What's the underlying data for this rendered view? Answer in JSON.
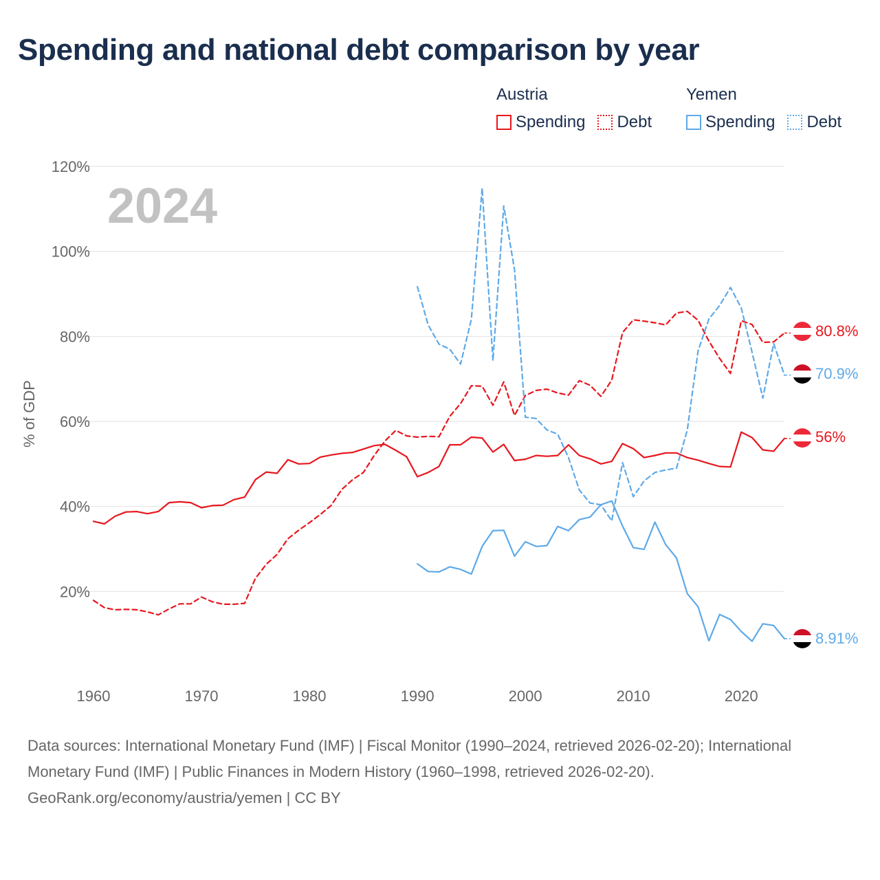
{
  "title": "Spending and national debt comparison by year",
  "legend": {
    "groups": [
      {
        "name": "Austria",
        "color": "#e8161d",
        "items": [
          {
            "label": "Spending",
            "style": "solid"
          },
          {
            "label": "Debt",
            "style": "dotted"
          }
        ]
      },
      {
        "name": "Yemen",
        "color": "#5ea9e8",
        "items": [
          {
            "label": "Spending",
            "style": "solid"
          },
          {
            "label": "Debt",
            "style": "dotted"
          }
        ]
      }
    ]
  },
  "chart_data": {
    "type": "line",
    "title": "Spending and national debt comparison by year",
    "year_watermark": "2024",
    "xlabel": "",
    "ylabel": "% of GDP",
    "xlim": [
      1960,
      2024
    ],
    "ylim": [
      0,
      120
    ],
    "x_ticks": [
      1960,
      1970,
      1980,
      1990,
      2000,
      2010,
      2020
    ],
    "y_ticks": [
      20,
      40,
      60,
      80,
      100,
      120
    ],
    "y_tick_labels": [
      "20%",
      "40%",
      "60%",
      "80%",
      "100%",
      "120%"
    ],
    "series": [
      {
        "name": "Austria Spending",
        "country": "Austria",
        "metric": "Spending",
        "color": "#e8161d",
        "style": "solid",
        "start_year": 1960,
        "values": [
          36.5,
          35.9,
          37.7,
          38.7,
          38.8,
          38.3,
          38.8,
          40.9,
          41.1,
          40.9,
          39.7,
          40.2,
          40.3,
          41.6,
          42.2,
          46.3,
          48.1,
          47.8,
          51.0,
          50.0,
          50.1,
          51.6,
          52.1,
          52.5,
          52.7,
          53.5,
          54.3,
          54.6,
          53.2,
          51.7,
          47.0,
          48.0,
          49.4,
          54.5,
          54.5,
          56.3,
          56.1,
          52.8,
          54.6,
          50.8,
          51.1,
          52.0,
          51.8,
          52.0,
          54.5,
          52.0,
          51.2,
          50.0,
          50.6,
          54.8,
          53.6,
          51.5,
          52.0,
          52.6,
          52.6,
          51.5,
          50.9,
          50.1,
          49.4,
          49.3,
          57.5,
          56.2,
          53.3,
          53.0,
          56.0
        ],
        "end_label": "56%"
      },
      {
        "name": "Austria Debt",
        "country": "Austria",
        "metric": "Debt",
        "color": "#e8161d",
        "style": "dashed",
        "start_year": 1960,
        "values": [
          17.9,
          16.2,
          15.7,
          15.8,
          15.7,
          15.2,
          14.5,
          15.9,
          17.1,
          17.1,
          18.7,
          17.6,
          17.0,
          17.0,
          17.2,
          23.1,
          26.4,
          28.7,
          32.4,
          34.4,
          36.2,
          38.1,
          40.2,
          44.0,
          46.3,
          48.0,
          52.0,
          55.4,
          57.9,
          56.6,
          56.3,
          56.5,
          56.4,
          61.2,
          64.2,
          68.4,
          68.3,
          63.8,
          69.3,
          61.4,
          66.1,
          67.3,
          67.6,
          66.7,
          66.2,
          69.6,
          68.5,
          65.9,
          69.7,
          80.9,
          83.9,
          83.6,
          83.2,
          82.7,
          85.5,
          85.9,
          83.8,
          78.9,
          74.8,
          71.3,
          83.7,
          82.8,
          78.6,
          78.7,
          80.8
        ],
        "end_label": "80.8%"
      },
      {
        "name": "Yemen Spending",
        "country": "Yemen",
        "metric": "Spending",
        "color": "#5ea9e8",
        "style": "solid",
        "start_year": 1990,
        "values": [
          26.5,
          24.7,
          24.6,
          25.8,
          25.2,
          24.1,
          30.6,
          34.3,
          34.4,
          28.3,
          31.7,
          30.6,
          30.8,
          35.3,
          34.3,
          36.9,
          37.5,
          40.4,
          41.3,
          35.4,
          30.3,
          29.9,
          36.3,
          31.0,
          27.9,
          19.5,
          16.4,
          8.4,
          14.6,
          13.4,
          10.6,
          8.3,
          12.4,
          12.0,
          8.9
        ],
        "end_label": "8.91%"
      },
      {
        "name": "Yemen Debt",
        "country": "Yemen",
        "metric": "Debt",
        "color": "#5ea9e8",
        "style": "dashed",
        "start_year": 1990,
        "values": [
          91.7,
          82.7,
          78.2,
          77.0,
          73.5,
          84.0,
          114.9,
          74.3,
          110.7,
          95.7,
          61.0,
          60.7,
          58.0,
          57.0,
          51.5,
          43.9,
          40.8,
          40.4,
          36.6,
          50.3,
          42.3,
          46.0,
          48.0,
          48.6,
          49.0,
          58.0,
          76.6,
          84.1,
          87.3,
          91.5,
          86.7,
          76.3,
          65.5,
          78.3,
          70.9
        ],
        "end_label": "70.9%"
      }
    ]
  },
  "footer": {
    "sources": "Data sources: International Monetary Fund (IMF) | Fiscal Monitor (1990–2024, retrieved 2026-02-20); International Monetary Fund (IMF) | Public Finances in Modern History (1960–1998, retrieved 2026-02-20).",
    "credit": "GeoRank.org/economy/austria/yemen | CC BY"
  }
}
